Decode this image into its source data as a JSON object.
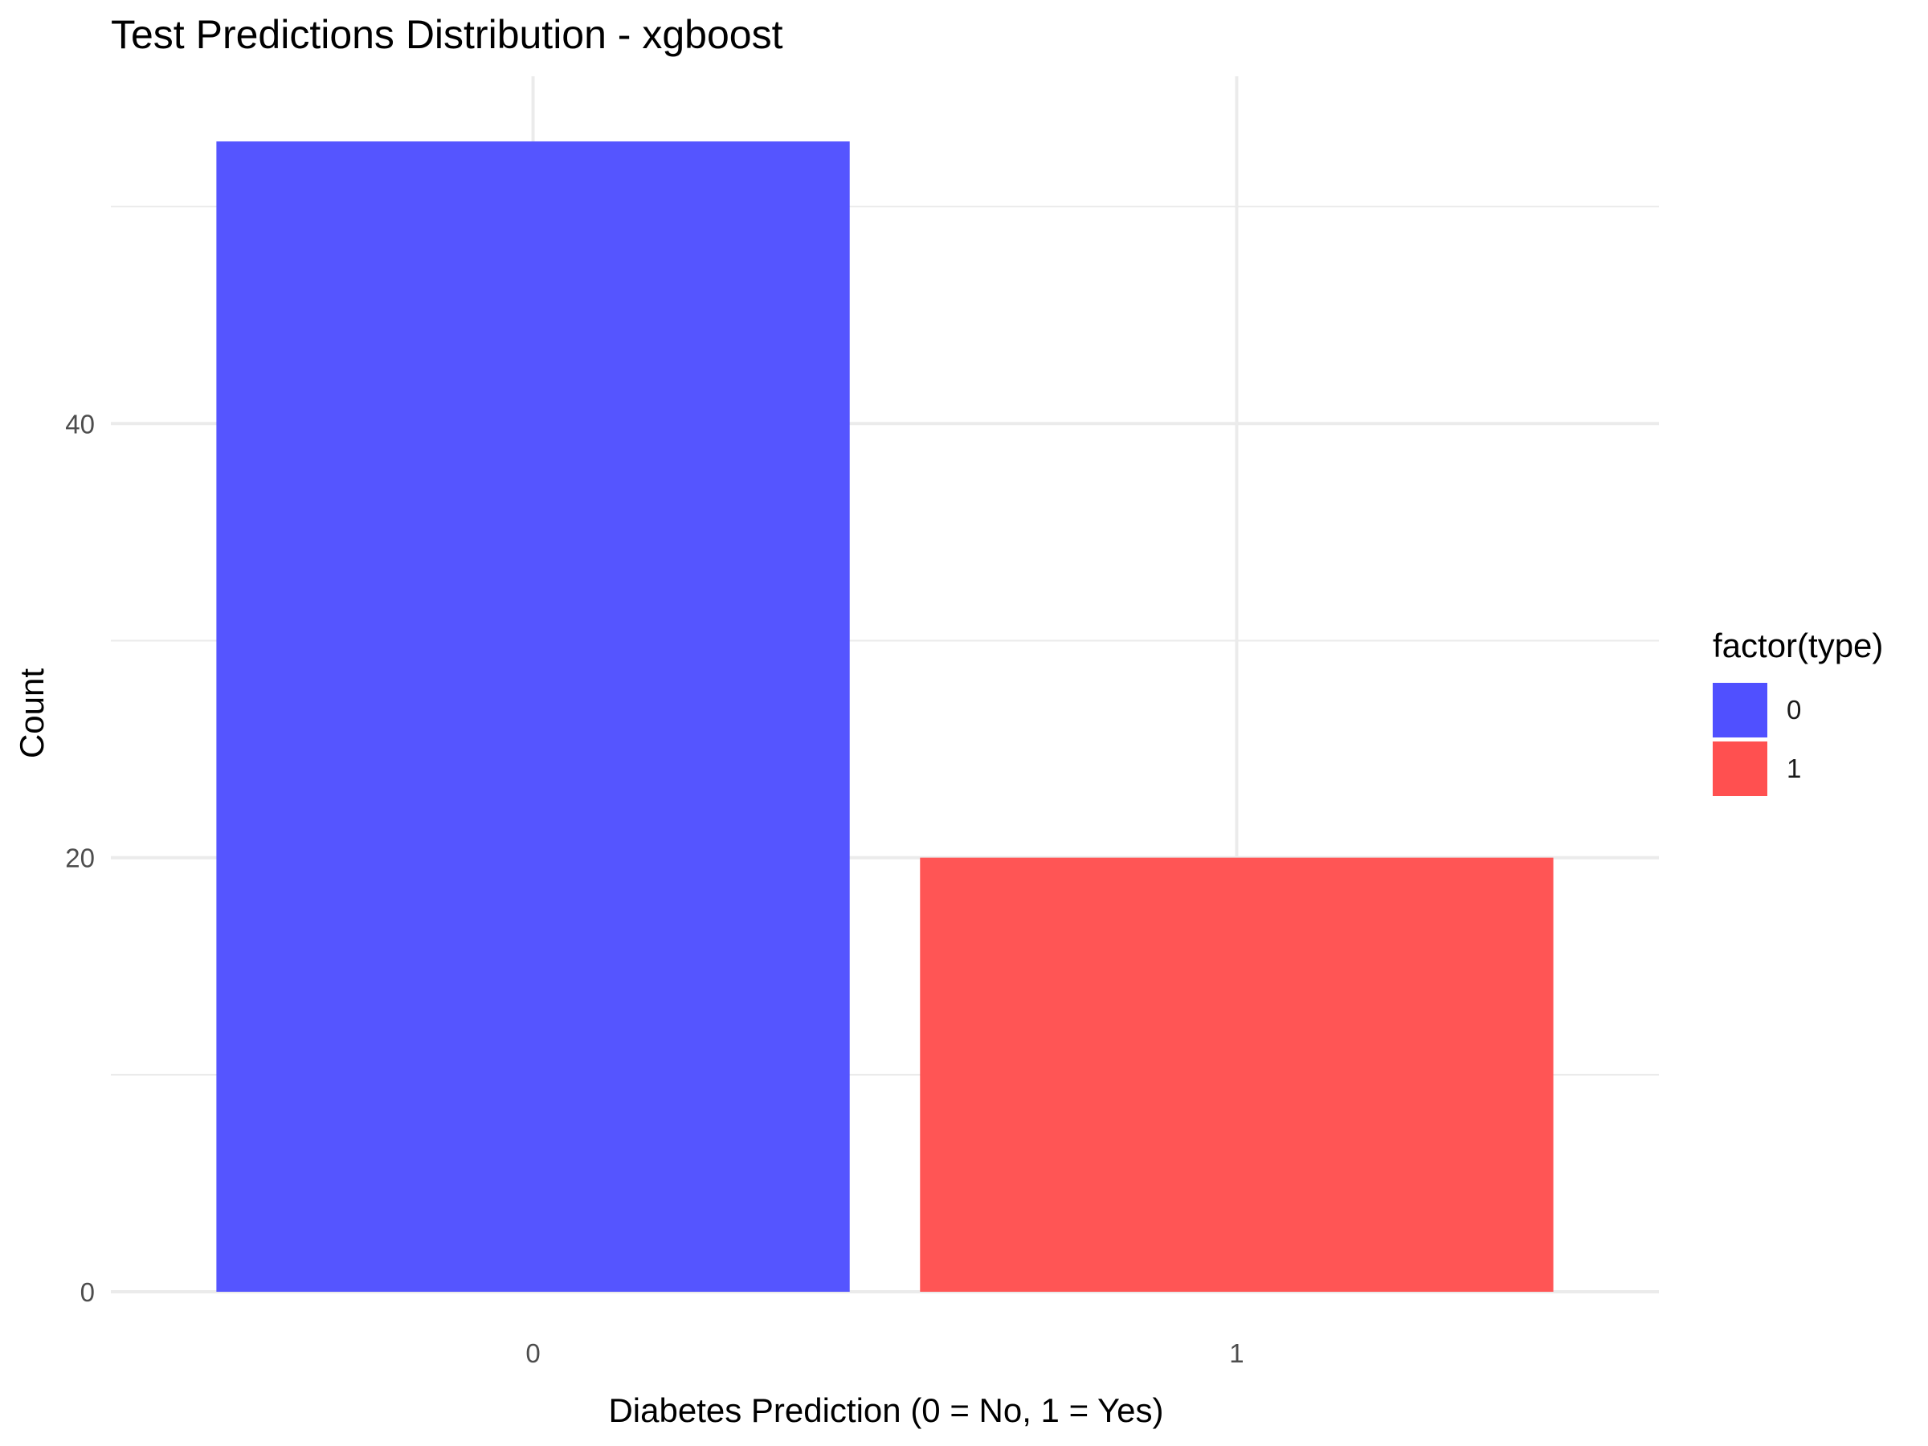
{
  "chart_data": {
    "type": "bar",
    "title": "Test Predictions Distribution - xgboost",
    "xlabel": "Diabetes Prediction (0 = No, 1 = Yes)",
    "ylabel": "Count",
    "categories": [
      "0",
      "1"
    ],
    "values": [
      53,
      20
    ],
    "colors": [
      "#5050FF",
      "#FF5050"
    ],
    "ylim": [
      0,
      56
    ],
    "yticks": [
      0,
      20,
      40
    ],
    "grid": true,
    "legend": {
      "title": "factor(type)",
      "position": "right",
      "entries": [
        {
          "label": "0",
          "color": "#5050FF"
        },
        {
          "label": "1",
          "color": "#FF5050"
        }
      ]
    }
  }
}
